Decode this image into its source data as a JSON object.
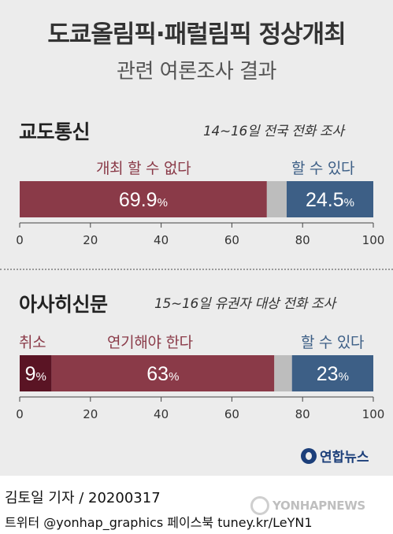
{
  "title": "도쿄올림픽·패럴림픽 정상개최",
  "subtitle": "관련 여론조사 결과",
  "colors": {
    "background": "#ececec",
    "negative": "#8a3a48",
    "negative_dark": "#5a1424",
    "neutral": "#bdbdbd",
    "positive": "#3d5f86"
  },
  "chart_data": [
    {
      "type": "bar",
      "orientation": "horizontal-stacked",
      "title": "교도통신",
      "note": "14∼16일 전국 전화 조사",
      "xlim": [
        0,
        100
      ],
      "ticks": [
        "0",
        "20",
        "40",
        "60",
        "80",
        "100"
      ],
      "categories": [
        "개최 할 수 없다",
        "할 수 있다"
      ],
      "series": [
        {
          "name": "개최 할 수 없다",
          "value": 69.9,
          "label": "69.9",
          "unit": "%",
          "color": "#8a3a48"
        },
        {
          "name": "",
          "value": 5.6,
          "label": "",
          "unit": "",
          "color": "#bdbdbd"
        },
        {
          "name": "할 수 있다",
          "value": 24.5,
          "label": "24.5",
          "unit": "%",
          "color": "#3d5f86"
        }
      ]
    },
    {
      "type": "bar",
      "orientation": "horizontal-stacked",
      "title": "아사히신문",
      "note": "15∼16일 유권자 대상 전화 조사",
      "xlim": [
        0,
        100
      ],
      "ticks": [
        "0",
        "20",
        "40",
        "60",
        "80",
        "100"
      ],
      "categories": [
        "취소",
        "연기해야 한다",
        "할 수 있다"
      ],
      "series": [
        {
          "name": "취소",
          "value": 9,
          "label": "9",
          "unit": "%",
          "color": "#5a1424"
        },
        {
          "name": "연기해야 한다",
          "value": 63,
          "label": "63",
          "unit": "%",
          "color": "#8a3a48"
        },
        {
          "name": "",
          "value": 5,
          "label": "",
          "unit": "",
          "color": "#bdbdbd"
        },
        {
          "name": "할 수 있다",
          "value": 23,
          "label": "23",
          "unit": "%",
          "color": "#3d5f86"
        }
      ]
    }
  ],
  "logo": "연합뉴스",
  "footer": {
    "byline": "김토일 기자 / 20200317",
    "social": "트위터 @yonhap_graphics  페이스북 tuney.kr/LeYN1"
  },
  "watermark": "YONHAPNEWS"
}
